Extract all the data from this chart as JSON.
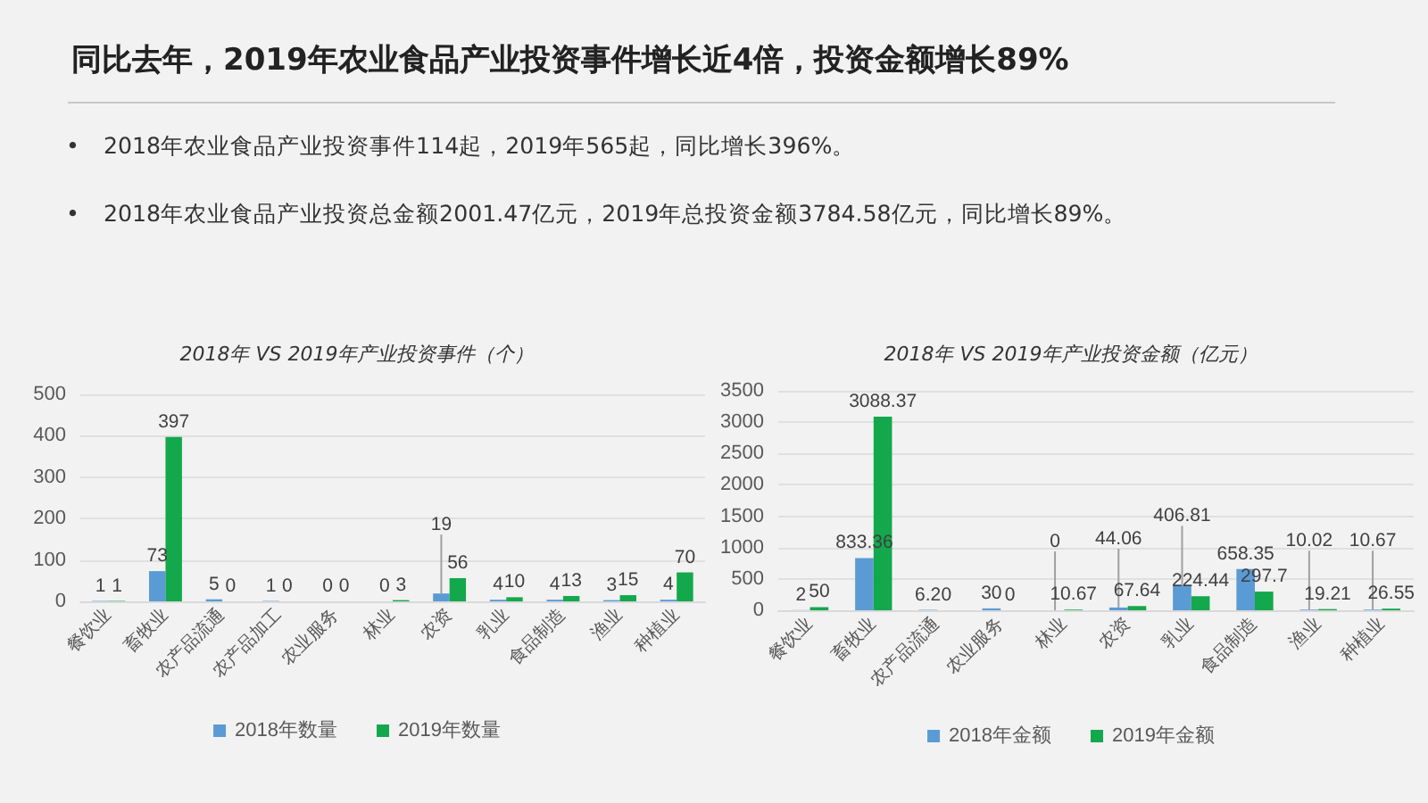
{
  "chart_data": [
    {
      "type": "other",
      "title": "同比去年，2019年农业食品产业投资事件增长近4倍，投资金额增长89%",
      "annotations": [
        "•\t2018年农业食品产业投资事件114起，2019年565起，同比增长396%。",
        "•\t2018年农业食品产业投资总金额2001.47亿元，2019年总投资金额3784.58亿元，同比增长89%。"
      ]
    },
    {
      "type": "bar",
      "title": "2018年  VS  2019年产业投资事件（个）",
      "categories": [
        "餐饮业",
        "畜牧业",
        "农产品流通",
        "农产品加工",
        "农业服务",
        "林业",
        "农资",
        "乳业",
        "食品制造",
        "渔业",
        "种植业"
      ],
      "series": [
        {
          "name": "2018年数量",
          "color": "#5b9bd5",
          "values": [
            1,
            73,
            5,
            1,
            0,
            0,
            19,
            4,
            4,
            3,
            4
          ]
        },
        {
          "name": "2019年数量",
          "color": "#14a84c",
          "values": [
            1,
            397,
            0,
            0,
            0,
            3,
            56,
            10,
            13,
            15,
            70
          ]
        }
      ],
      "ylim": [
        0,
        500
      ],
      "yticks": [
        0,
        100,
        200,
        300,
        400,
        500
      ],
      "grid": "y",
      "legend": "bottom",
      "data_labels": true
    },
    {
      "type": "bar",
      "title": "2018年  VS  2019年产业投资金额（亿元）",
      "categories": [
        "餐饮业",
        "畜牧业",
        "农产品流通",
        "农业服务",
        "林业",
        "农资",
        "乳业",
        "食品制造",
        "渔业",
        "种植业"
      ],
      "series": [
        {
          "name": "2018年金额",
          "color": "#5b9bd5",
          "values": [
            2,
            833.36,
            6.2,
            30,
            0,
            44.06,
            406.81,
            658.35,
            10.02,
            10.67
          ]
        },
        {
          "name": "2019年金额",
          "color": "#14a84c",
          "values": [
            50,
            3088.37,
            0,
            0,
            10.67,
            67.64,
            224.44,
            297.7,
            19.21,
            26.55
          ]
        }
      ],
      "ylim": [
        0,
        3500
      ],
      "yticks": [
        0,
        500,
        1000,
        1500,
        2000,
        2500,
        3000,
        3500
      ],
      "grid": "y",
      "legend": "bottom",
      "data_labels": true
    }
  ]
}
